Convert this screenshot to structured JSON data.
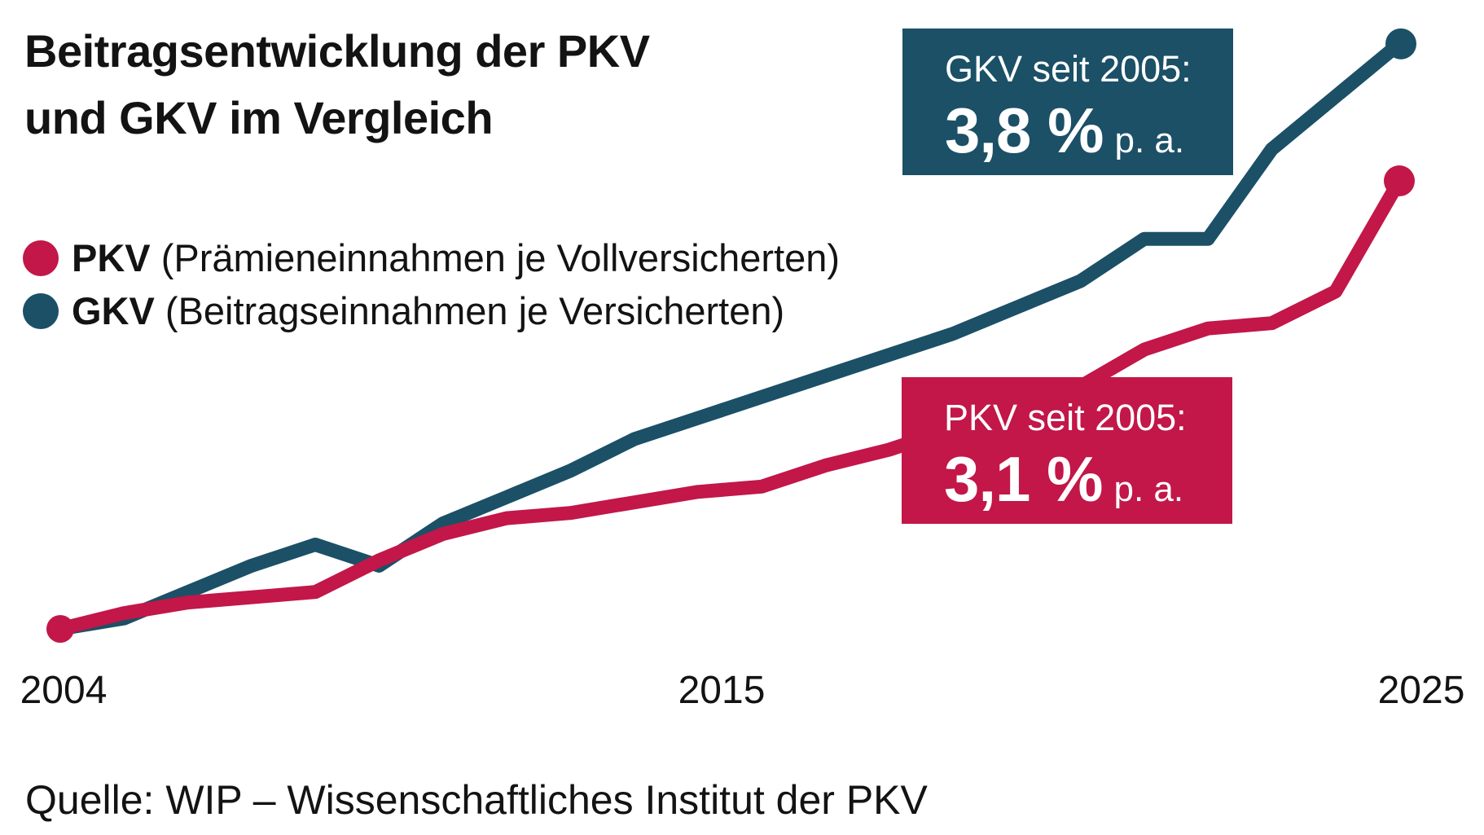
{
  "title": {
    "line1": "Beitragsentwicklung der PKV",
    "line2": "und GKV im Vergleich"
  },
  "legend": [
    {
      "label": "PKV",
      "description": "(Prämieneinnahmen je Vollversicherten)",
      "color": "#C21748"
    },
    {
      "label": "GKV",
      "description": "(Beitragseinnahmen je Versicherten)",
      "color": "#1B5067"
    }
  ],
  "callouts": {
    "gkv": {
      "line1": "GKV seit 2005:",
      "value": "3,8 %",
      "suffix": "p. a.",
      "bg": "#1B5067"
    },
    "pkv": {
      "line1": "PKV seit 2005:",
      "value": "3,1 %",
      "suffix": "p. a.",
      "bg": "#C21748"
    }
  },
  "x_axis": {
    "label_2004": "2004",
    "label_2015": "2015",
    "label_2025": "2025"
  },
  "source": "Quelle: WIP – Wissenschaftliches Institut der PKV",
  "colors": {
    "pkv": "#C21748",
    "gkv": "#1B5067",
    "text": "#131313",
    "background": "#FFFFFF"
  },
  "chart_data": {
    "type": "line",
    "title": "Beitragsentwicklung der PKV und GKV im Vergleich",
    "unit": "Index (2004 = 100, values estimated from graphic)",
    "x": [
      2004,
      2005,
      2006,
      2007,
      2008,
      2009,
      2010,
      2011,
      2012,
      2013,
      2014,
      2015,
      2016,
      2017,
      2018,
      2019,
      2020,
      2021,
      2022,
      2023,
      2024,
      2025
    ],
    "series": [
      {
        "name": "PKV (Prämieneinnahmen je Vollversicherten)",
        "color": "#C21748",
        "values": [
          100,
          103,
          105,
          106,
          107,
          113,
          118,
          121,
          122,
          124,
          126,
          127,
          131,
          134,
          138,
          142,
          146,
          153,
          157,
          158,
          164,
          185
        ],
        "growth_since_2005": "3,1 % p. a.",
        "start_marker": true,
        "end_marker": true
      },
      {
        "name": "GKV (Beitragseinnahmen je Versicherten)",
        "color": "#1B5067",
        "values": [
          100,
          102,
          107,
          112,
          116,
          112,
          120,
          125,
          130,
          136,
          140,
          144,
          148,
          152,
          156,
          161,
          166,
          174,
          174,
          191,
          201,
          211
        ],
        "growth_since_2005": "3,8 % p. a.",
        "start_marker": false,
        "end_marker": true
      }
    ],
    "x_tick_labels": [
      "2004",
      "2015",
      "2025"
    ],
    "ylim": [
      95,
      215
    ],
    "grid": false,
    "axes_visible": false,
    "legend_position": "upper-left"
  }
}
